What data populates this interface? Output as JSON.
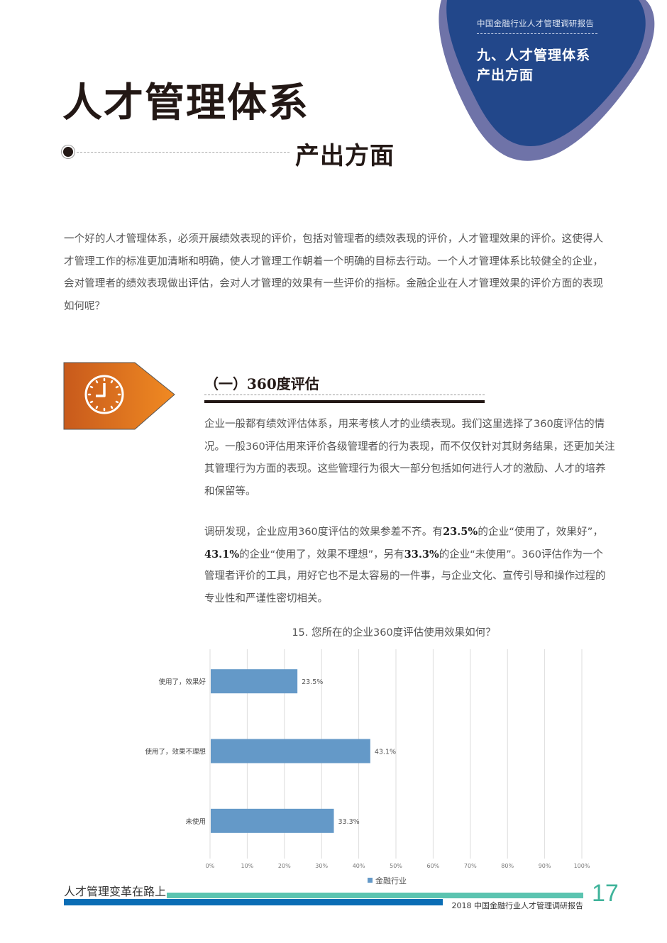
{
  "corner": {
    "report_name": "中国金融行业人才管理调研报告",
    "chapter_title_line1": "九、人才管理体系",
    "chapter_title_line2": "产出方面",
    "colors": {
      "outer": "#6f73a8",
      "inner": "#22478a"
    }
  },
  "header": {
    "title": "人才管理体系",
    "subtitle": "产出方面"
  },
  "intro": {
    "lines": [
      "一个好的人才管理体系，必须开展绩效表现的评价，包括对管理者的绩效表现的评价，人才管理效果的评价。这使得人",
      "才管理工作的标准更加清晰和明确，使人才管理工作朝着一个明确的目标去行动。一个人才管理体系比较健全的企业，",
      "会对管理者的绩效表现做出评估，会对人才管理的效果有一些评价的指标。金融企业在人才管理效果的评价方面的表现",
      "如何呢？"
    ]
  },
  "section": {
    "icon": "clock-icon",
    "tag_color": "#e0701e",
    "title": "（一）360度评估",
    "para1_lines": [
      "企业一般都有绩效评估体系，用来考核人才的业绩表现。我们这里选择了360度评估的情",
      "况。一般360评估用来评价各级管理者的行为表现，而不仅仅针对其财务结果，还更加关注",
      "其管理行为方面的表现。这些管理行为很大一部分包括如何进行人才的激励、人才的培养",
      "和保留等。"
    ],
    "para2": {
      "l1_a": "调研发现，企业应用360度评估的效果参差不齐。有",
      "l1_b": "23.5%",
      "l1_c": "的企业“使用了，效果好”，",
      "l2_a": "43.1%",
      "l2_b": "的企业“使用了，效果不理想”，另有",
      "l2_c": "33.3%",
      "l2_d": "的企业“未使用”。360评估作为一个",
      "l3": "管理者评价的工具，用好它也不是太容易的一件事，与企业文化、宣传引导和操作过程的",
      "l4": "专业性和严谨性密切相关。"
    }
  },
  "chart_data": {
    "type": "bar",
    "orientation": "horizontal",
    "title": "15. 您所在的企业360度评估使用效果如何？",
    "categories": [
      "使用了，效果好",
      "使用了，效果不理想",
      "未使用"
    ],
    "series": [
      {
        "name": "金融行业",
        "values": [
          23.5,
          43.1,
          33.3
        ],
        "color": "#6499c8"
      }
    ],
    "data_labels": [
      "23.5%",
      "43.1%",
      "33.3%"
    ],
    "xlim": [
      0,
      100
    ],
    "xticks": [
      "0%",
      "10%",
      "20%",
      "30%",
      "40%",
      "50%",
      "60%",
      "70%",
      "80%",
      "90%",
      "100%"
    ],
    "grid": true,
    "legend": "bottom"
  },
  "footer": {
    "left": "人才管理变革在路上",
    "right": "2018 中国金融行业人才管理调研报告",
    "page_number": "17"
  }
}
